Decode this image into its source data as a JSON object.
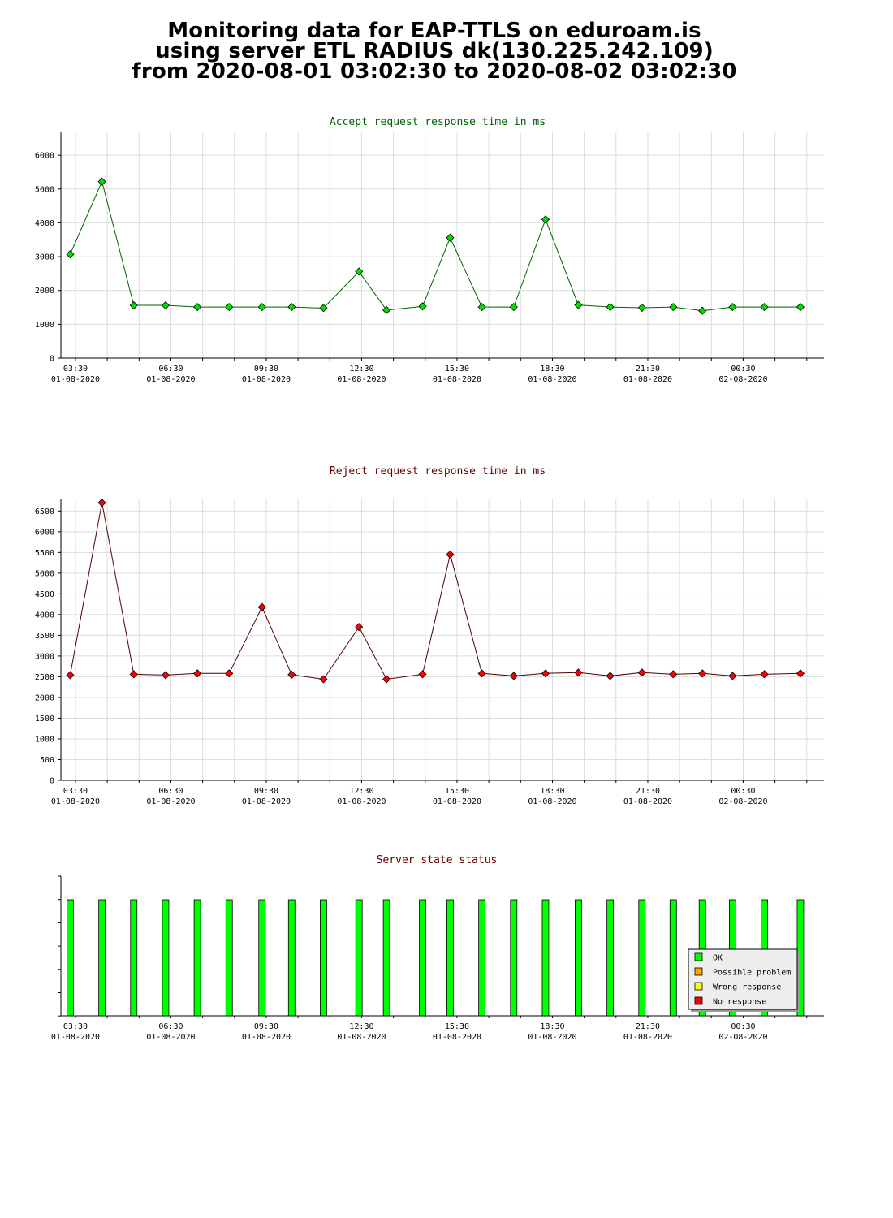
{
  "header": {
    "line1": "Monitoring data for EAP-TTLS on eduroam.is",
    "line2": "using server ETL RADIUS dk(130.225.242.109)",
    "line3": "from 2020-08-01 03:02:30 to 2020-08-02 03:02:30"
  },
  "x_ticks": [
    {
      "time": "03:30",
      "date": "01-08-2020"
    },
    {
      "time": "06:30",
      "date": "01-08-2020"
    },
    {
      "time": "09:30",
      "date": "01-08-2020"
    },
    {
      "time": "12:30",
      "date": "01-08-2020"
    },
    {
      "time": "15:30",
      "date": "01-08-2020"
    },
    {
      "time": "18:30",
      "date": "01-08-2020"
    },
    {
      "time": "21:30",
      "date": "01-08-2020"
    },
    {
      "time": "00:30",
      "date": "02-08-2020"
    }
  ],
  "chart_data": [
    {
      "type": "line",
      "title": "Accept request response time in ms",
      "colors": {
        "line": "#006400",
        "marker": "#00dd00",
        "title": "#006400"
      },
      "x": [
        "2020-08-01 03:20",
        "2020-08-01 04:20",
        "2020-08-01 05:20",
        "2020-08-01 06:20",
        "2020-08-01 07:20",
        "2020-08-01 08:20",
        "2020-08-01 09:22",
        "2020-08-01 10:18",
        "2020-08-01 11:18",
        "2020-08-01 12:25",
        "2020-08-01 13:17",
        "2020-08-01 14:25",
        "2020-08-01 15:17",
        "2020-08-01 16:17",
        "2020-08-01 17:17",
        "2020-08-01 18:17",
        "2020-08-01 19:19",
        "2020-08-01 20:19",
        "2020-08-01 21:19",
        "2020-08-01 22:18",
        "2020-08-01 23:13",
        "2020-08-02 00:10",
        "2020-08-02 01:10",
        "2020-08-02 02:18"
      ],
      "values": [
        3070,
        5220,
        1560,
        1560,
        1510,
        1510,
        1510,
        1510,
        1480,
        2560,
        1420,
        1530,
        3560,
        1510,
        1510,
        4100,
        1570,
        1510,
        1490,
        1510,
        1400,
        1510,
        1510,
        1510
      ],
      "ylim": [
        0,
        6700
      ],
      "y_ticks": [
        0,
        1000,
        2000,
        3000,
        4000,
        5000,
        6000
      ],
      "grid": true
    },
    {
      "type": "line",
      "title": "Reject request response time in ms",
      "colors": {
        "line": "#4d0000",
        "marker": "#ff0000",
        "title": "#660000"
      },
      "x": [
        "2020-08-01 03:20",
        "2020-08-01 04:20",
        "2020-08-01 05:20",
        "2020-08-01 06:20",
        "2020-08-01 07:20",
        "2020-08-01 08:20",
        "2020-08-01 09:22",
        "2020-08-01 10:18",
        "2020-08-01 11:18",
        "2020-08-01 12:25",
        "2020-08-01 13:17",
        "2020-08-01 14:25",
        "2020-08-01 15:17",
        "2020-08-01 16:17",
        "2020-08-01 17:17",
        "2020-08-01 18:17",
        "2020-08-01 19:19",
        "2020-08-01 20:19",
        "2020-08-01 21:19",
        "2020-08-01 22:18",
        "2020-08-01 23:13",
        "2020-08-02 00:10",
        "2020-08-02 01:10",
        "2020-08-02 02:18"
      ],
      "values": [
        2540,
        6700,
        2560,
        2540,
        2580,
        2580,
        4180,
        2550,
        2440,
        3700,
        2440,
        2560,
        5450,
        2580,
        2520,
        2580,
        2600,
        2520,
        2600,
        2560,
        2580,
        2520,
        2560,
        2580
      ],
      "ylim": [
        0,
        6800
      ],
      "y_ticks": [
        0,
        500,
        1000,
        1500,
        2000,
        2500,
        3000,
        3500,
        4000,
        4500,
        5000,
        5500,
        6000,
        6500
      ],
      "grid": true
    },
    {
      "type": "bar",
      "title": "Server state status",
      "colors": {
        "title": "#660000",
        "OK": "#00ff00",
        "Possible problem": "#ffa500",
        "Wrong response": "#ffff00",
        "No response": "#ff0000"
      },
      "x": [
        "2020-08-01 03:20",
        "2020-08-01 04:20",
        "2020-08-01 05:20",
        "2020-08-01 06:20",
        "2020-08-01 07:20",
        "2020-08-01 08:20",
        "2020-08-01 09:22",
        "2020-08-01 10:18",
        "2020-08-01 11:18",
        "2020-08-01 12:25",
        "2020-08-01 13:17",
        "2020-08-01 14:25",
        "2020-08-01 15:17",
        "2020-08-01 16:17",
        "2020-08-01 17:17",
        "2020-08-01 18:17",
        "2020-08-01 19:19",
        "2020-08-01 20:19",
        "2020-08-01 21:19",
        "2020-08-01 22:18",
        "2020-08-01 23:13",
        "2020-08-02 00:10",
        "2020-08-02 01:10",
        "2020-08-02 02:18"
      ],
      "states": [
        "OK",
        "OK",
        "OK",
        "OK",
        "OK",
        "OK",
        "OK",
        "OK",
        "OK",
        "OK",
        "OK",
        "OK",
        "OK",
        "OK",
        "OK",
        "OK",
        "OK",
        "OK",
        "OK",
        "OK",
        "OK",
        "OK",
        "OK",
        "OK"
      ],
      "legend": [
        "OK",
        "Possible problem",
        "Wrong response",
        "No response"
      ],
      "legend_position": "bottom-right",
      "grid": false
    }
  ]
}
